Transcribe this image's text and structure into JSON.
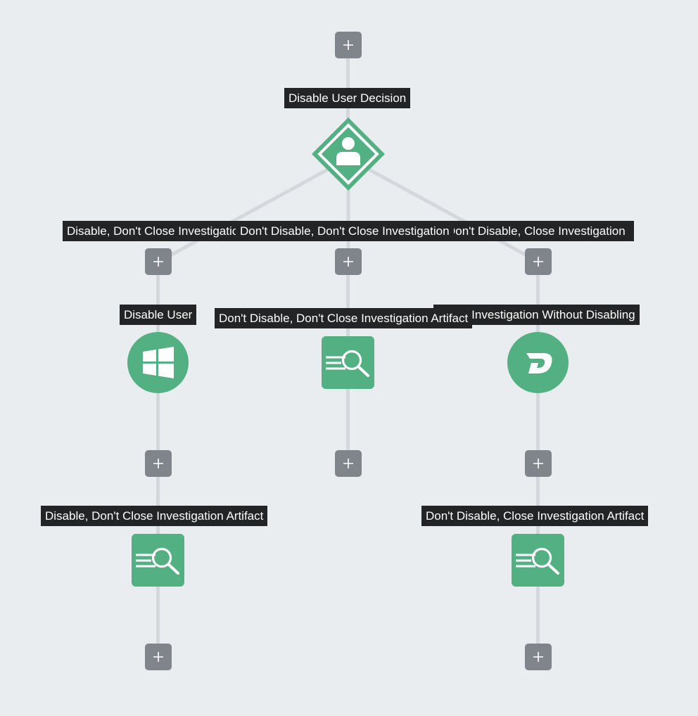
{
  "colors": {
    "background": "#eaedf0",
    "edge": "#d4d8dc",
    "add_button": "#80858c",
    "node": "#52b083",
    "label_bg": "#222425",
    "label_text": "#ffffff"
  },
  "add_button_icon": "plus-icon",
  "decision": {
    "label": "Disable User Decision",
    "icon": "user-icon"
  },
  "branches": [
    {
      "label": "Disable, Don't Close Investigation",
      "action": {
        "label": "Disable User",
        "icon": "windows-icon"
      },
      "artifact": {
        "label": "Disable, Don't Close Investigation Artifact",
        "icon": "artifact-search-icon"
      }
    },
    {
      "label": "Don't Disable, Don't Close Investigation",
      "artifact": {
        "label": "Don't Disable, Don't Close Investigation Artifact",
        "icon": "artifact-search-icon"
      }
    },
    {
      "label": "Don't Disable, Close Investigation",
      "action": {
        "label": "Close Investigation Without Disabling",
        "icon": "d-logo-icon"
      },
      "artifact": {
        "label": "Don't Disable, Close Investigation Artifact",
        "icon": "artifact-search-icon"
      }
    }
  ]
}
